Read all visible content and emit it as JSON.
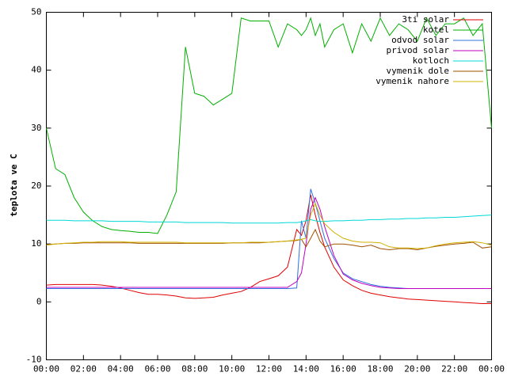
{
  "chart_data": {
    "type": "line",
    "ylabel": "teplota ve C",
    "x": [
      0,
      0.5,
      1,
      1.5,
      2,
      2.5,
      3,
      3.5,
      4,
      4.5,
      5,
      5.5,
      6,
      6.5,
      7,
      7.5,
      8,
      8.5,
      9,
      9.5,
      10,
      10.5,
      11,
      11.5,
      12,
      12.5,
      13,
      13.5,
      13.75,
      14,
      14.25,
      14.5,
      14.75,
      15,
      15.5,
      16,
      16.5,
      17,
      17.5,
      18,
      18.5,
      19,
      19.5,
      20,
      20.5,
      21,
      21.5,
      22,
      22.5,
      23,
      23.5,
      24
    ],
    "xlim": [
      0,
      24
    ],
    "xticks": [
      {
        "value": 0,
        "label": "00:00"
      },
      {
        "value": 2,
        "label": "02:00"
      },
      {
        "value": 4,
        "label": "04:00"
      },
      {
        "value": 6,
        "label": "06:00"
      },
      {
        "value": 8,
        "label": "08:00"
      },
      {
        "value": 10,
        "label": "10:00"
      },
      {
        "value": 12,
        "label": "12:00"
      },
      {
        "value": 14,
        "label": "14:00"
      },
      {
        "value": 16,
        "label": "16:00"
      },
      {
        "value": 18,
        "label": "18:00"
      },
      {
        "value": 20,
        "label": "20:00"
      },
      {
        "value": 22,
        "label": "22:00"
      },
      {
        "value": 24,
        "label": "00:00"
      }
    ],
    "ylim": [
      -10,
      50
    ],
    "yticks": [
      -10,
      0,
      10,
      20,
      30,
      40,
      50
    ],
    "grid": false,
    "legend": "upper right",
    "series": [
      {
        "name": "3ti solar",
        "color": "#e00000",
        "values": [
          2.9,
          3.0,
          3.0,
          3.0,
          3.0,
          3.0,
          2.9,
          2.7,
          2.4,
          2.0,
          1.6,
          1.3,
          1.3,
          1.2,
          1.0,
          0.7,
          0.6,
          0.7,
          0.8,
          1.2,
          1.5,
          1.8,
          2.5,
          3.5,
          4.0,
          4.5,
          6.0,
          12.5,
          11.5,
          14,
          18.5,
          15,
          12,
          9.5,
          6,
          3.8,
          2.8,
          2.0,
          1.5,
          1.2,
          0.9,
          0.7,
          0.5,
          0.4,
          0.3,
          0.2,
          0.1,
          0.0,
          -0.1,
          -0.2,
          -0.3,
          -0.3
        ]
      },
      {
        "name": "kotel",
        "color": "#00b000",
        "values": [
          30,
          23,
          22,
          18,
          15.5,
          14,
          13,
          12.5,
          12.3,
          12.2,
          12,
          12,
          11.8,
          15,
          19,
          44,
          36,
          35.5,
          34,
          35,
          36,
          49,
          48.5,
          48.5,
          48.5,
          44,
          48,
          47,
          46,
          47,
          49,
          46,
          48,
          44,
          47,
          48,
          43,
          48,
          45,
          49,
          46,
          48,
          47,
          45,
          49,
          46,
          48,
          48,
          49,
          46,
          48,
          30
        ]
      },
      {
        "name": "odvod solar",
        "color": "#3070e0",
        "values": [
          2.3,
          2.3,
          2.3,
          2.3,
          2.3,
          2.3,
          2.3,
          2.3,
          2.3,
          2.3,
          2.3,
          2.3,
          2.3,
          2.3,
          2.3,
          2.3,
          2.3,
          2.3,
          2.3,
          2.3,
          2.3,
          2.3,
          2.3,
          2.3,
          2.3,
          2.3,
          2.3,
          2.4,
          14,
          11,
          19.5,
          17,
          14,
          11,
          7.5,
          5,
          4,
          3.5,
          3,
          2.7,
          2.5,
          2.4,
          2.3,
          2.3,
          2.3,
          2.3,
          2.3,
          2.3,
          2.3,
          2.3,
          2.3,
          2.3
        ]
      },
      {
        "name": "privod solar",
        "color": "#c000c0",
        "values": [
          2.5,
          2.5,
          2.5,
          2.5,
          2.5,
          2.5,
          2.5,
          2.5,
          2.5,
          2.5,
          2.5,
          2.5,
          2.5,
          2.5,
          2.5,
          2.5,
          2.5,
          2.5,
          2.5,
          2.5,
          2.5,
          2.5,
          2.5,
          2.5,
          2.5,
          2.5,
          2.5,
          3.5,
          5,
          10,
          16,
          18,
          16,
          13,
          8,
          4.8,
          3.8,
          3.2,
          2.8,
          2.5,
          2.4,
          2.3,
          2.3,
          2.3,
          2.3,
          2.3,
          2.3,
          2.3,
          2.3,
          2.3,
          2.3,
          2.3
        ]
      },
      {
        "name": "kotloch",
        "color": "#00d8d8",
        "values": [
          14.1,
          14.1,
          14.1,
          14.0,
          14.0,
          14.0,
          14.0,
          13.9,
          13.9,
          13.9,
          13.9,
          13.8,
          13.8,
          13.8,
          13.8,
          13.7,
          13.7,
          13.7,
          13.7,
          13.7,
          13.6,
          13.6,
          13.6,
          13.6,
          13.6,
          13.6,
          13.7,
          13.7,
          13.8,
          14.0,
          14.2,
          14.0,
          13.9,
          13.9,
          14.0,
          14.0,
          14.1,
          14.1,
          14.2,
          14.2,
          14.3,
          14.3,
          14.4,
          14.4,
          14.5,
          14.5,
          14.6,
          14.6,
          14.7,
          14.8,
          14.9,
          15.0
        ]
      },
      {
        "name": "vymenik dole",
        "color": "#a05000",
        "values": [
          9.9,
          10.0,
          10.1,
          10.1,
          10.2,
          10.2,
          10.2,
          10.2,
          10.2,
          10.2,
          10.1,
          10.1,
          10.1,
          10.1,
          10.1,
          10.1,
          10.1,
          10.1,
          10.1,
          10.1,
          10.2,
          10.2,
          10.2,
          10.2,
          10.3,
          10.4,
          10.5,
          10.6,
          10.8,
          9.5,
          11,
          12.5,
          10.5,
          9.5,
          10,
          10,
          9.8,
          9.5,
          9.8,
          9.2,
          9,
          9.2,
          9.2,
          9,
          9.3,
          9.6,
          9.8,
          10,
          10.1,
          10.3,
          9.3,
          9.5
        ]
      },
      {
        "name": "vymenik nahore",
        "color": "#d0b000",
        "values": [
          9.8,
          10.0,
          10.1,
          10.2,
          10.3,
          10.3,
          10.4,
          10.4,
          10.4,
          10.3,
          10.3,
          10.3,
          10.3,
          10.3,
          10.3,
          10.2,
          10.2,
          10.2,
          10.2,
          10.2,
          10.2,
          10.2,
          10.3,
          10.3,
          10.3,
          10.4,
          10.5,
          10.7,
          10.8,
          11,
          15,
          17,
          15,
          13.5,
          12,
          11,
          10.5,
          10.3,
          10.3,
          10.2,
          9.5,
          9.3,
          9.3,
          9.2,
          9.3,
          9.7,
          10,
          10.2,
          10.3,
          10.4,
          10.2,
          9.8
        ]
      }
    ]
  }
}
